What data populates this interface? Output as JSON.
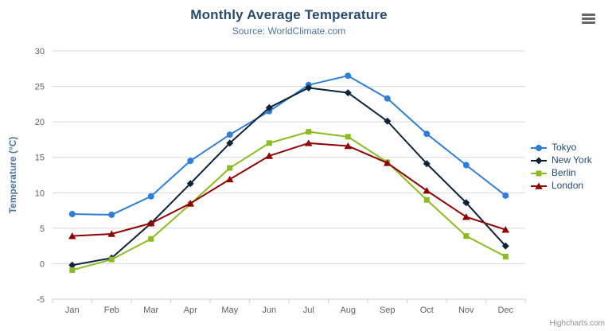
{
  "chart": {
    "title": "Monthly Average Temperature",
    "subtitle": "Source: WorldClimate.com",
    "credits": "Highcharts.com",
    "export_button": "context-menu"
  },
  "chart_data": {
    "type": "line",
    "title": "Monthly Average Temperature",
    "subtitle": "Source: WorldClimate.com",
    "categories": [
      "Jan",
      "Feb",
      "Mar",
      "Apr",
      "May",
      "Jun",
      "Jul",
      "Aug",
      "Sep",
      "Oct",
      "Nov",
      "Dec"
    ],
    "xlabel": "",
    "ylabel": "Temperature (°C)",
    "ylim": [
      -5,
      30
    ],
    "yticks": [
      -5,
      0,
      5,
      10,
      15,
      20,
      25,
      30
    ],
    "grid": "horizontal",
    "legend_position": "right",
    "series": [
      {
        "name": "Tokyo",
        "color": "#2f7ed8",
        "marker": "circle",
        "values": [
          7.0,
          6.9,
          9.5,
          14.5,
          18.2,
          21.5,
          25.2,
          26.5,
          23.3,
          18.3,
          13.9,
          9.6
        ]
      },
      {
        "name": "New York",
        "color": "#0d233a",
        "marker": "diamond",
        "values": [
          -0.2,
          0.8,
          5.7,
          11.3,
          17.0,
          22.0,
          24.8,
          24.1,
          20.1,
          14.1,
          8.6,
          2.5
        ]
      },
      {
        "name": "Berlin",
        "color": "#8bbc21",
        "marker": "square",
        "values": [
          -0.9,
          0.6,
          3.5,
          8.4,
          13.5,
          17.0,
          18.6,
          17.9,
          14.3,
          9.0,
          3.9,
          1.0
        ]
      },
      {
        "name": "London",
        "color": "#910000",
        "marker": "triangle",
        "values": [
          3.9,
          4.2,
          5.7,
          8.5,
          11.9,
          15.2,
          17.0,
          16.6,
          14.2,
          10.3,
          6.6,
          4.8
        ]
      }
    ]
  },
  "colors": {
    "title": "#274b6d",
    "subtitle": "#4d759e",
    "axis_label": "#606060",
    "axis_title": "#4d759e",
    "grid_line": "#d8d8d8",
    "axis_line": "#c0d0e0",
    "legend_text": "#274b6d",
    "credits": "#909090",
    "export_icon": "#666666"
  }
}
